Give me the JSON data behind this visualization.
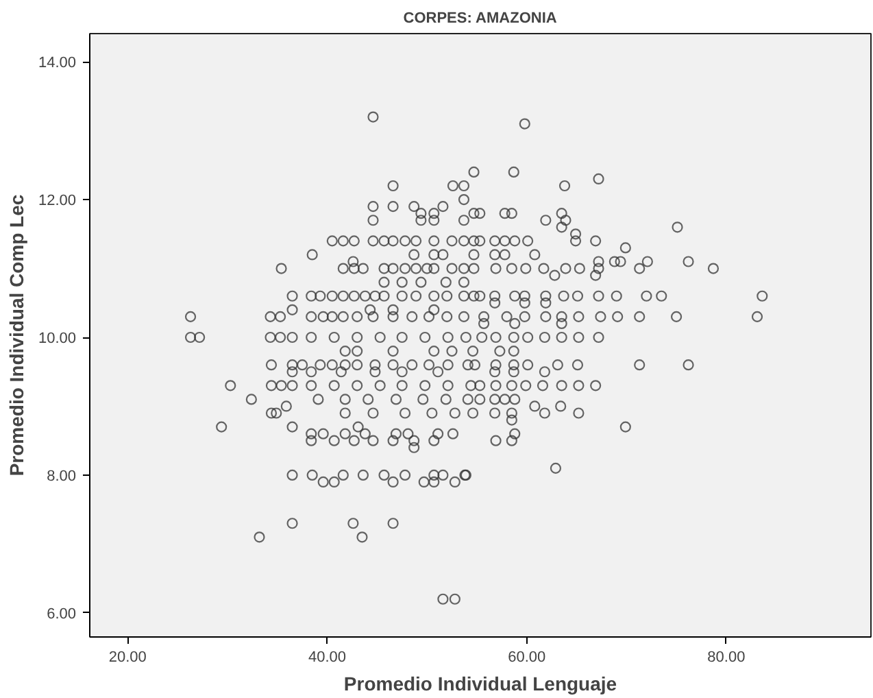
{
  "chart_data": {
    "type": "scatter",
    "title": "CORPES: AMAZONIA",
    "xlabel": "Promedio Individual Lenguaje",
    "ylabel": "Promedio Individual Comp Lec",
    "xlim": [
      16.2,
      94.5
    ],
    "ylim": [
      5.65,
      14.41
    ],
    "xticks": [
      {
        "value": 20,
        "label": "20.00"
      },
      {
        "value": 40,
        "label": "40.00"
      },
      {
        "value": 60,
        "label": "60.00"
      },
      {
        "value": 80,
        "label": "80.00"
      }
    ],
    "yticks": [
      {
        "value": 6,
        "label": "6.00"
      },
      {
        "value": 8,
        "label": "8.00"
      },
      {
        "value": 10,
        "label": "10.00"
      },
      {
        "value": 12,
        "label": "12.00"
      },
      {
        "value": 14,
        "label": "14.00"
      }
    ],
    "grid": false,
    "marker": "circle",
    "series": [
      {
        "color": "#333333",
        "x": [
          44.6,
          59.8,
          54.7,
          58.7,
          67.2,
          46.6,
          52.6,
          53.7,
          63.8,
          53.7,
          44.6,
          46.6,
          48.7,
          51.6,
          49.4,
          50.7,
          54.7,
          55.3,
          57.8,
          58.5,
          63.5,
          44.6,
          49.4,
          50.7,
          53.7,
          61.9,
          63.9,
          63.5,
          75.1,
          64.9,
          40.5,
          41.6,
          42.7,
          44.6,
          45.7,
          46.6,
          47.8,
          48.9,
          50.7,
          52.5,
          53.7,
          54.7,
          55.3,
          56.8,
          57.8,
          58.8,
          60.1,
          64.9,
          66.9,
          69.9,
          38.5,
          48.7,
          50.7,
          51.6,
          54.7,
          56.8,
          57.8,
          60.8,
          42.6,
          67.2,
          68.8,
          69.4,
          72.1,
          76.2,
          35.4,
          41.6,
          42.7,
          43.6,
          45.7,
          46.6,
          47.8,
          48.9,
          50.0,
          50.7,
          52.5,
          53.7,
          54.7,
          56.9,
          58.5,
          59.9,
          61.7,
          63.9,
          65.3,
          67.2,
          71.3,
          78.7,
          62.8,
          66.9,
          45.7,
          47.5,
          49.4,
          51.9,
          53.7,
          36.5,
          38.4,
          39.3,
          40.5,
          41.6,
          42.7,
          43.8,
          44.8,
          45.7,
          47.5,
          48.9,
          50.7,
          52.0,
          53.7,
          54.7,
          55.3,
          56.8,
          58.8,
          59.8,
          61.9,
          63.7,
          65.1,
          67.2,
          69.0,
          72.0,
          73.5,
          83.6,
          56.8,
          59.8,
          61.9,
          36.5,
          44.3,
          46.6,
          50.7,
          26.3,
          34.3,
          35.3,
          38.4,
          39.6,
          40.5,
          41.6,
          43.0,
          44.6,
          46.6,
          48.5,
          50.2,
          52.0,
          53.7,
          55.7,
          58.0,
          59.8,
          61.9,
          63.5,
          65.2,
          67.4,
          69.1,
          71.3,
          75.0,
          83.1,
          55.7,
          58.8,
          63.5,
          26.3,
          27.2,
          34.3,
          35.3,
          36.5,
          38.4,
          40.7,
          43.0,
          45.3,
          47.5,
          49.8,
          52.1,
          53.9,
          55.5,
          56.9,
          58.7,
          60.1,
          61.8,
          63.5,
          65.2,
          67.2,
          41.8,
          43.0,
          46.6,
          50.7,
          52.5,
          54.6,
          57.3,
          58.7,
          34.4,
          36.5,
          37.5,
          39.3,
          40.5,
          41.8,
          43.0,
          44.8,
          46.6,
          48.5,
          50.2,
          52.1,
          54.1,
          54.8,
          56.9,
          58.7,
          60.1,
          63.1,
          65.1,
          71.3,
          76.2,
          36.5,
          38.4,
          41.4,
          44.8,
          47.5,
          51.1,
          56.8,
          58.7,
          61.8,
          30.3,
          34.4,
          35.4,
          36.5,
          38.4,
          40.7,
          43.0,
          45.3,
          47.5,
          49.8,
          52.1,
          54.4,
          55.3,
          56.9,
          58.5,
          59.9,
          61.6,
          63.5,
          65.2,
          66.9,
          32.4,
          39.1,
          41.8,
          44.1,
          46.9,
          49.6,
          51.9,
          54.1,
          55.3,
          56.8,
          57.8,
          58.8,
          35.9,
          60.8,
          63.4,
          34.4,
          34.9,
          41.8,
          44.6,
          47.8,
          50.5,
          52.8,
          54.6,
          56.8,
          58.5,
          61.8,
          65.2,
          58.5,
          29.4,
          36.5,
          43.1,
          69.9,
          38.4,
          39.6,
          41.8,
          43.8,
          46.9,
          48.1,
          51.1,
          52.6,
          58.8,
          38.4,
          40.7,
          42.7,
          44.6,
          46.6,
          48.7,
          50.7,
          56.9,
          58.5,
          48.7,
          62.9,
          36.5,
          38.5,
          41.6,
          43.6,
          45.7,
          47.8,
          50.7,
          51.6,
          53.8,
          53.9,
          39.6,
          40.7,
          46.6,
          49.7,
          50.7,
          52.8,
          36.5,
          42.6,
          46.6,
          33.2,
          43.5,
          51.6,
          52.8
        ],
        "values": [
          13.2,
          13.1,
          12.4,
          12.4,
          12.3,
          12.2,
          12.2,
          12.2,
          12.2,
          12.0,
          11.9,
          11.9,
          11.9,
          11.9,
          11.8,
          11.8,
          11.8,
          11.8,
          11.8,
          11.8,
          11.8,
          11.7,
          11.7,
          11.7,
          11.7,
          11.7,
          11.7,
          11.6,
          11.6,
          11.5,
          11.4,
          11.4,
          11.4,
          11.4,
          11.4,
          11.4,
          11.4,
          11.4,
          11.4,
          11.4,
          11.4,
          11.4,
          11.4,
          11.4,
          11.4,
          11.4,
          11.4,
          11.4,
          11.4,
          11.3,
          11.2,
          11.2,
          11.2,
          11.2,
          11.2,
          11.2,
          11.2,
          11.2,
          11.1,
          11.1,
          11.1,
          11.1,
          11.1,
          11.1,
          11.0,
          11.0,
          11.0,
          11.0,
          11.0,
          11.0,
          11.0,
          11.0,
          11.0,
          11.0,
          11.0,
          11.0,
          11.0,
          11.0,
          11.0,
          11.0,
          11.0,
          11.0,
          11.0,
          11.0,
          11.0,
          11.0,
          10.9,
          10.9,
          10.8,
          10.8,
          10.8,
          10.8,
          10.8,
          10.6,
          10.6,
          10.6,
          10.6,
          10.6,
          10.6,
          10.6,
          10.6,
          10.6,
          10.6,
          10.6,
          10.6,
          10.6,
          10.6,
          10.6,
          10.6,
          10.6,
          10.6,
          10.6,
          10.6,
          10.6,
          10.6,
          10.6,
          10.6,
          10.6,
          10.6,
          10.6,
          10.5,
          10.5,
          10.5,
          10.4,
          10.4,
          10.4,
          10.4,
          10.3,
          10.3,
          10.3,
          10.3,
          10.3,
          10.3,
          10.3,
          10.3,
          10.3,
          10.3,
          10.3,
          10.3,
          10.3,
          10.3,
          10.3,
          10.3,
          10.3,
          10.3,
          10.3,
          10.3,
          10.3,
          10.3,
          10.3,
          10.3,
          10.3,
          10.2,
          10.2,
          10.2,
          10.0,
          10.0,
          10.0,
          10.0,
          10.0,
          10.0,
          10.0,
          10.0,
          10.0,
          10.0,
          10.0,
          10.0,
          10.0,
          10.0,
          10.0,
          10.0,
          10.0,
          10.0,
          10.0,
          10.0,
          10.0,
          9.8,
          9.8,
          9.8,
          9.8,
          9.8,
          9.8,
          9.8,
          9.8,
          9.6,
          9.6,
          9.6,
          9.6,
          9.6,
          9.6,
          9.6,
          9.6,
          9.6,
          9.6,
          9.6,
          9.6,
          9.6,
          9.6,
          9.6,
          9.6,
          9.6,
          9.6,
          9.6,
          9.6,
          9.6,
          9.5,
          9.5,
          9.5,
          9.5,
          9.5,
          9.5,
          9.5,
          9.5,
          9.5,
          9.3,
          9.3,
          9.3,
          9.3,
          9.3,
          9.3,
          9.3,
          9.3,
          9.3,
          9.3,
          9.3,
          9.3,
          9.3,
          9.3,
          9.3,
          9.3,
          9.3,
          9.3,
          9.3,
          9.3,
          9.1,
          9.1,
          9.1,
          9.1,
          9.1,
          9.1,
          9.1,
          9.1,
          9.1,
          9.1,
          9.1,
          9.1,
          9.0,
          9.0,
          9.0,
          8.9,
          8.9,
          8.9,
          8.9,
          8.9,
          8.9,
          8.9,
          8.9,
          8.9,
          8.9,
          8.9,
          8.9,
          8.8,
          8.7,
          8.7,
          8.7,
          8.7,
          8.6,
          8.6,
          8.6,
          8.6,
          8.6,
          8.6,
          8.6,
          8.6,
          8.6,
          8.5,
          8.5,
          8.5,
          8.5,
          8.5,
          8.5,
          8.5,
          8.5,
          8.5,
          8.4,
          8.1,
          8.0,
          8.0,
          8.0,
          8.0,
          8.0,
          8.0,
          8.0,
          8.0,
          8.0,
          8.0,
          7.9,
          7.9,
          7.9,
          7.9,
          7.9,
          7.9,
          7.3,
          7.3,
          7.3,
          7.1,
          7.1,
          6.2,
          6.2
        ]
      }
    ]
  }
}
